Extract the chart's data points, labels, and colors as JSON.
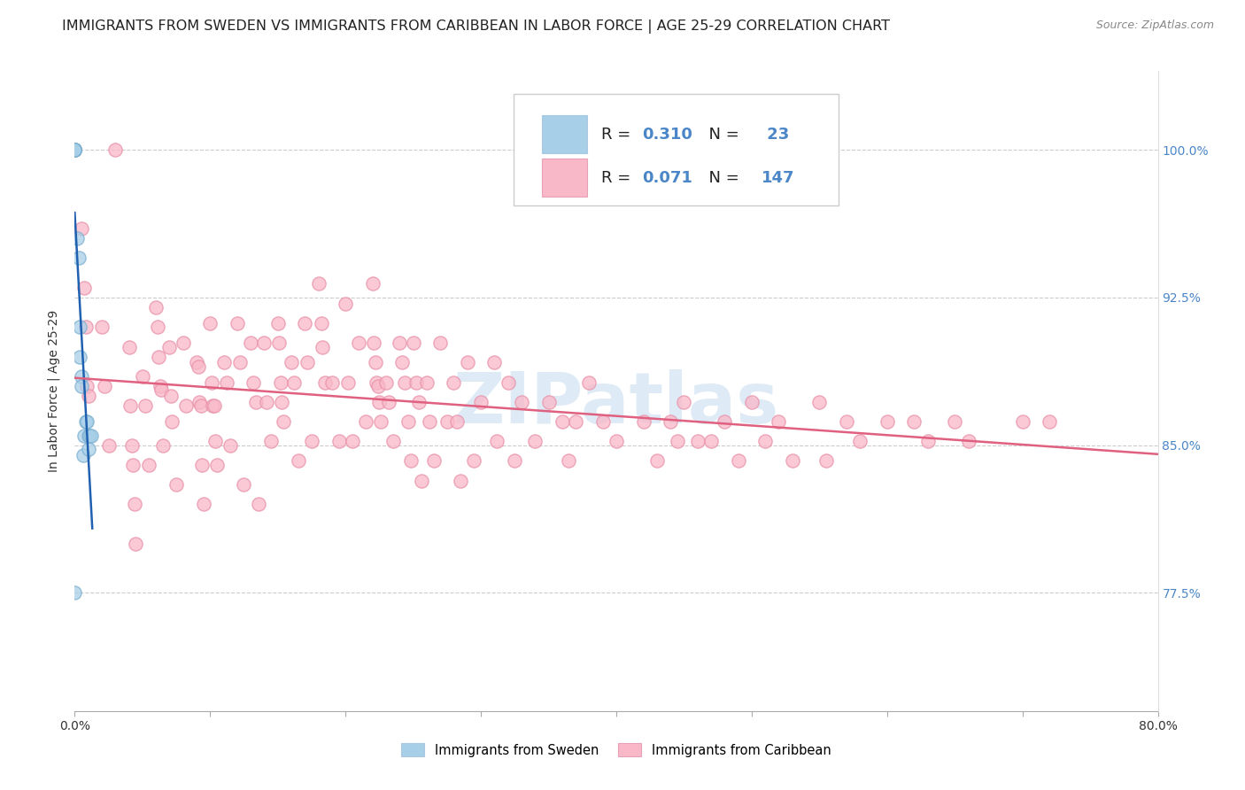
{
  "title": "IMMIGRANTS FROM SWEDEN VS IMMIGRANTS FROM CARIBBEAN IN LABOR FORCE | AGE 25-29 CORRELATION CHART",
  "source": "Source: ZipAtlas.com",
  "ylabel": "In Labor Force | Age 25-29",
  "xlim": [
    0.0,
    0.8
  ],
  "ylim": [
    0.715,
    1.04
  ],
  "yticks": [
    0.775,
    0.85,
    0.925,
    1.0
  ],
  "ytick_labels": [
    "77.5%",
    "85.0%",
    "92.5%",
    "100.0%"
  ],
  "legend_label_sweden": "Immigrants from Sweden",
  "legend_label_caribbean": "Immigrants from Caribbean",
  "watermark": "ZIPatlas",
  "sweden_color": "#a8cfe8",
  "caribbean_color": "#f9b8c8",
  "trend_sweden_color": "#2060b0",
  "trend_caribbean_color": "#e06080",
  "background_color": "#ffffff",
  "sweden_x": [
    0.0,
    0.0,
    0.0,
    0.0,
    0.0,
    0.0,
    0.0,
    0.0,
    0.002,
    0.003,
    0.004,
    0.004,
    0.005,
    0.005,
    0.006,
    0.007,
    0.008,
    0.009,
    0.01,
    0.01,
    0.011,
    0.012,
    0.0
  ],
  "sweden_y": [
    1.0,
    1.0,
    1.0,
    1.0,
    1.0,
    1.0,
    1.0,
    1.0,
    0.955,
    0.945,
    0.91,
    0.895,
    0.885,
    0.88,
    0.845,
    0.855,
    0.862,
    0.862,
    0.855,
    0.848,
    0.855,
    0.855,
    0.775
  ],
  "caribbean_x": [
    0.03,
    0.005,
    0.007,
    0.008,
    0.009,
    0.01,
    0.02,
    0.022,
    0.025,
    0.04,
    0.041,
    0.042,
    0.043,
    0.044,
    0.045,
    0.05,
    0.052,
    0.055,
    0.06,
    0.061,
    0.062,
    0.063,
    0.064,
    0.065,
    0.07,
    0.071,
    0.072,
    0.075,
    0.08,
    0.082,
    0.09,
    0.091,
    0.092,
    0.093,
    0.094,
    0.095,
    0.1,
    0.101,
    0.102,
    0.103,
    0.104,
    0.105,
    0.11,
    0.112,
    0.115,
    0.12,
    0.122,
    0.125,
    0.13,
    0.132,
    0.134,
    0.136,
    0.14,
    0.142,
    0.145,
    0.15,
    0.151,
    0.152,
    0.153,
    0.154,
    0.16,
    0.162,
    0.165,
    0.17,
    0.172,
    0.175,
    0.18,
    0.182,
    0.183,
    0.185,
    0.19,
    0.195,
    0.2,
    0.202,
    0.205,
    0.21,
    0.215,
    0.22,
    0.221,
    0.222,
    0.223,
    0.224,
    0.225,
    0.226,
    0.23,
    0.232,
    0.235,
    0.24,
    0.242,
    0.244,
    0.246,
    0.248,
    0.25,
    0.252,
    0.254,
    0.256,
    0.26,
    0.262,
    0.265,
    0.27,
    0.275,
    0.28,
    0.282,
    0.285,
    0.29,
    0.295,
    0.3,
    0.31,
    0.312,
    0.32,
    0.325,
    0.33,
    0.34,
    0.35,
    0.36,
    0.365,
    0.37,
    0.38,
    0.39,
    0.4,
    0.42,
    0.43,
    0.44,
    0.445,
    0.45,
    0.46,
    0.47,
    0.48,
    0.49,
    0.5,
    0.51,
    0.52,
    0.53,
    0.55,
    0.555,
    0.57,
    0.58,
    0.6,
    0.62,
    0.63,
    0.65,
    0.66,
    0.7,
    0.72
  ],
  "caribbean_y": [
    1.0,
    0.96,
    0.93,
    0.91,
    0.88,
    0.875,
    0.91,
    0.88,
    0.85,
    0.9,
    0.87,
    0.85,
    0.84,
    0.82,
    0.8,
    0.885,
    0.87,
    0.84,
    0.92,
    0.91,
    0.895,
    0.88,
    0.878,
    0.85,
    0.9,
    0.875,
    0.862,
    0.83,
    0.902,
    0.87,
    0.892,
    0.89,
    0.872,
    0.87,
    0.84,
    0.82,
    0.912,
    0.882,
    0.87,
    0.87,
    0.852,
    0.84,
    0.892,
    0.882,
    0.85,
    0.912,
    0.892,
    0.83,
    0.902,
    0.882,
    0.872,
    0.82,
    0.902,
    0.872,
    0.852,
    0.912,
    0.902,
    0.882,
    0.872,
    0.862,
    0.892,
    0.882,
    0.842,
    0.912,
    0.892,
    0.852,
    0.932,
    0.912,
    0.9,
    0.882,
    0.882,
    0.852,
    0.922,
    0.882,
    0.852,
    0.902,
    0.862,
    0.932,
    0.902,
    0.892,
    0.882,
    0.88,
    0.872,
    0.862,
    0.882,
    0.872,
    0.852,
    0.902,
    0.892,
    0.882,
    0.862,
    0.842,
    0.902,
    0.882,
    0.872,
    0.832,
    0.882,
    0.862,
    0.842,
    0.902,
    0.862,
    0.882,
    0.862,
    0.832,
    0.892,
    0.842,
    0.872,
    0.892,
    0.852,
    0.882,
    0.842,
    0.872,
    0.852,
    0.872,
    0.862,
    0.842,
    0.862,
    0.882,
    0.862,
    0.852,
    0.862,
    0.842,
    0.862,
    0.852,
    0.872,
    0.852,
    0.852,
    0.862,
    0.842,
    0.872,
    0.852,
    0.862,
    0.842,
    0.872,
    0.842,
    0.862,
    0.852,
    0.862,
    0.862,
    0.852,
    0.862,
    0.852,
    0.862,
    0.862
  ],
  "title_fontsize": 11.5,
  "axis_label_fontsize": 10,
  "tick_fontsize": 10,
  "legend_fontsize": 13
}
